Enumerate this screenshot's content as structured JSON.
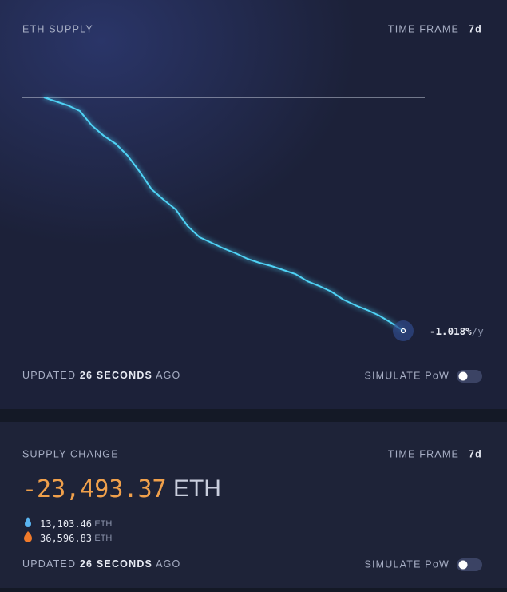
{
  "supply_card": {
    "title": "ETH SUPPLY",
    "time_frame_label": "TIME FRAME",
    "time_frame": "7d",
    "rate": "-1.018%",
    "rate_unit": "/y",
    "updated": {
      "prefix": "UPDATED",
      "age": "26 SECONDS",
      "suffix": "AGO"
    },
    "toggle_label": "SIMULATE PoW"
  },
  "chart_data": {
    "type": "line",
    "color": "#4fd2f5",
    "values": [
      0,
      -402,
      -805,
      -1368,
      -2816,
      -3862,
      -4666,
      -5873,
      -7482,
      -9253,
      -10299,
      -11264,
      -12954,
      -14080,
      -14643,
      -15206,
      -15689,
      -16253,
      -16655,
      -16977,
      -17379,
      -17782,
      -18506,
      -18989,
      -19552,
      -20357,
      -20920,
      -21403,
      -21966,
      -22690,
      -23493.37
    ],
    "ylim": [
      -23493.37,
      0
    ]
  },
  "change_card": {
    "title": "SUPPLY CHANGE",
    "time_frame_label": "TIME FRAME",
    "time_frame": "7d",
    "amount": "-23,493.37",
    "unit": "ETH",
    "issued": {
      "amount": "13,103.46",
      "unit": "ETH"
    },
    "burned": {
      "amount": "36,596.83",
      "unit": "ETH"
    },
    "updated": {
      "prefix": "UPDATED",
      "age": "26 SECONDS",
      "suffix": "AGO"
    },
    "toggle_label": "SIMULATE PoW"
  }
}
